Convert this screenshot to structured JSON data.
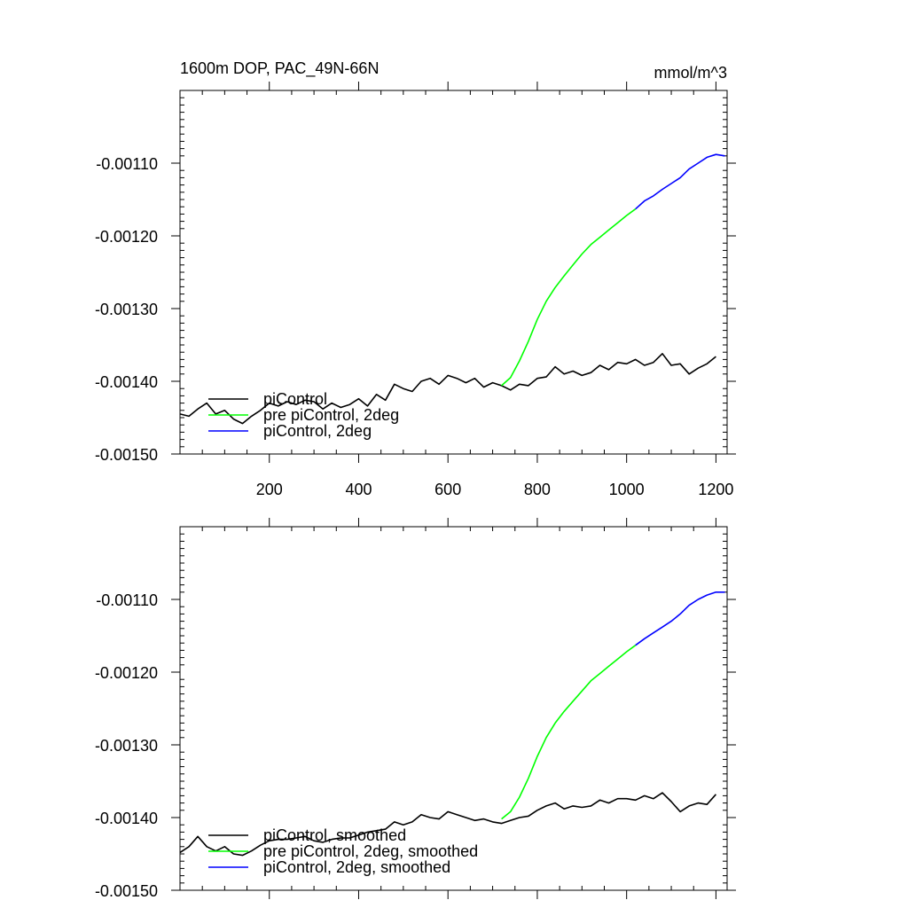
{
  "chart_data": [
    {
      "type": "line",
      "title": "1600m DOP, PAC_49N-66N",
      "units": "mmol/m^3",
      "xlim": [
        0,
        1225
      ],
      "ylim": [
        -0.0015,
        -0.001
      ],
      "x_ticks": [
        200,
        400,
        600,
        800,
        1000,
        1200
      ],
      "y_ticks": [
        -0.0015,
        -0.0014,
        -0.0013,
        -0.0012,
        -0.0011
      ],
      "y_tick_labels": [
        "-0.00150",
        "-0.00140",
        "-0.00130",
        "-0.00120",
        "-0.00110"
      ],
      "x_tick_labels": [
        "200",
        "400",
        "600",
        "800",
        "1000",
        "1200"
      ],
      "legend_location": "bottom-left",
      "series": [
        {
          "name": "piControl",
          "color": "#000000",
          "x": [
            0,
            20,
            40,
            60,
            80,
            100,
            120,
            140,
            160,
            180,
            200,
            220,
            240,
            260,
            280,
            300,
            320,
            340,
            360,
            380,
            400,
            420,
            440,
            460,
            480,
            500,
            520,
            540,
            560,
            580,
            600,
            620,
            640,
            660,
            680,
            700,
            720,
            740,
            760,
            780,
            800,
            820,
            840,
            860,
            880,
            900,
            920,
            940,
            960,
            980,
            1000,
            1020,
            1040,
            1060,
            1080,
            1100,
            1120,
            1140,
            1160,
            1180,
            1200
          ],
          "y": [
            -0.001445,
            -0.001448,
            -0.001438,
            -0.00143,
            -0.001445,
            -0.00144,
            -0.001452,
            -0.001458,
            -0.001448,
            -0.00144,
            -0.00143,
            -0.001434,
            -0.001428,
            -0.001432,
            -0.001426,
            -0.001428,
            -0.001438,
            -0.00143,
            -0.001436,
            -0.001432,
            -0.001424,
            -0.001434,
            -0.001418,
            -0.001426,
            -0.001404,
            -0.00141,
            -0.001414,
            -0.0014,
            -0.001396,
            -0.001404,
            -0.001392,
            -0.001396,
            -0.001402,
            -0.001396,
            -0.001408,
            -0.001402,
            -0.001406,
            -0.001412,
            -0.001404,
            -0.001406,
            -0.001396,
            -0.001394,
            -0.00138,
            -0.00139,
            -0.001386,
            -0.001392,
            -0.001388,
            -0.001378,
            -0.001384,
            -0.001374,
            -0.001376,
            -0.00137,
            -0.001378,
            -0.001374,
            -0.001362,
            -0.001378,
            -0.001376,
            -0.00139,
            -0.001382,
            -0.001376,
            -0.001366
          ]
        },
        {
          "name": "pre piControl, 2deg",
          "color": "#00ff00",
          "x": [
            720,
            740,
            760,
            780,
            800,
            820,
            840,
            860,
            880,
            900,
            920,
            940,
            960,
            980,
            1000,
            1020
          ],
          "y": [
            -0.001406,
            -0.001395,
            -0.001372,
            -0.001345,
            -0.001315,
            -0.00129,
            -0.001271,
            -0.001255,
            -0.00124,
            -0.001225,
            -0.001212,
            -0.001202,
            -0.001192,
            -0.001182,
            -0.001172,
            -0.001163
          ]
        },
        {
          "name": "piControl, 2deg",
          "color": "#0000ff",
          "x": [
            1020,
            1040,
            1060,
            1080,
            1100,
            1120,
            1140,
            1160,
            1180,
            1200,
            1220
          ],
          "y": [
            -0.001163,
            -0.001152,
            -0.001145,
            -0.001136,
            -0.001128,
            -0.00112,
            -0.001108,
            -0.0011,
            -0.001092,
            -0.001088,
            -0.00109
          ]
        }
      ]
    },
    {
      "type": "line",
      "title": "",
      "units": "",
      "xlim": [
        0,
        1225
      ],
      "ylim": [
        -0.0015,
        -0.001
      ],
      "x_ticks": [
        200,
        400,
        600,
        800,
        1000,
        1200
      ],
      "y_ticks": [
        -0.0015,
        -0.0014,
        -0.0013,
        -0.0012,
        -0.0011
      ],
      "y_tick_labels": [
        "-0.00150",
        "-0.00140",
        "-0.00130",
        "-0.00120",
        "-0.00110"
      ],
      "x_tick_labels": [],
      "legend_location": "bottom-left",
      "series": [
        {
          "name": "piControl, smoothed",
          "color": "#000000",
          "x": [
            0,
            20,
            40,
            60,
            80,
            100,
            120,
            140,
            160,
            180,
            200,
            220,
            240,
            260,
            280,
            300,
            320,
            340,
            360,
            380,
            400,
            420,
            440,
            460,
            480,
            500,
            520,
            540,
            560,
            580,
            600,
            620,
            640,
            660,
            680,
            700,
            720,
            740,
            760,
            780,
            800,
            820,
            840,
            860,
            880,
            900,
            920,
            940,
            960,
            980,
            1000,
            1020,
            1040,
            1060,
            1080,
            1100,
            1120,
            1140,
            1160,
            1180,
            1200
          ],
          "y": [
            -0.001448,
            -0.00144,
            -0.001426,
            -0.00144,
            -0.001446,
            -0.00144,
            -0.00145,
            -0.001452,
            -0.001446,
            -0.001438,
            -0.001432,
            -0.00143,
            -0.00143,
            -0.001428,
            -0.001426,
            -0.001432,
            -0.001434,
            -0.00143,
            -0.001428,
            -0.001428,
            -0.001424,
            -0.00142,
            -0.001418,
            -0.001416,
            -0.001406,
            -0.00141,
            -0.001406,
            -0.001396,
            -0.0014,
            -0.001402,
            -0.001392,
            -0.001396,
            -0.0014,
            -0.001404,
            -0.001402,
            -0.001406,
            -0.001408,
            -0.001404,
            -0.0014,
            -0.001398,
            -0.00139,
            -0.001384,
            -0.00138,
            -0.001388,
            -0.001384,
            -0.001386,
            -0.001384,
            -0.001376,
            -0.00138,
            -0.001374,
            -0.001374,
            -0.001376,
            -0.00137,
            -0.001374,
            -0.001366,
            -0.001378,
            -0.001392,
            -0.001384,
            -0.00138,
            -0.001382,
            -0.001368
          ]
        },
        {
          "name": "pre piControl, 2deg, smoothed",
          "color": "#00ff00",
          "x": [
            720,
            740,
            760,
            780,
            800,
            820,
            840,
            860,
            880,
            900,
            920,
            940,
            960,
            980,
            1000,
            1020
          ],
          "y": [
            -0.001402,
            -0.001392,
            -0.001372,
            -0.001346,
            -0.001316,
            -0.00129,
            -0.00127,
            -0.001254,
            -0.00124,
            -0.001226,
            -0.001212,
            -0.001202,
            -0.001192,
            -0.001182,
            -0.001172,
            -0.001163
          ]
        },
        {
          "name": "piControl, 2deg, smoothed",
          "color": "#0000ff",
          "x": [
            1020,
            1040,
            1060,
            1080,
            1100,
            1120,
            1140,
            1160,
            1180,
            1200,
            1220
          ],
          "y": [
            -0.001163,
            -0.001154,
            -0.001146,
            -0.001138,
            -0.00113,
            -0.00112,
            -0.001108,
            -0.0011,
            -0.001094,
            -0.00109,
            -0.00109
          ]
        }
      ]
    }
  ]
}
